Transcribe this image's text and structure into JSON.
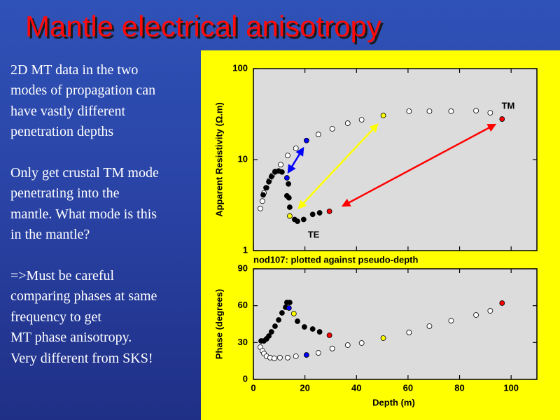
{
  "slide": {
    "title": "Mantle electrical anisotropy",
    "paragraphs": [
      [
        "2D MT data in the two",
        "modes of propagation can",
        "have vastly different",
        "penetration depths"
      ],
      [
        "Only get crustal TM mode",
        "penetrating into the",
        "mantle. What mode is this",
        "in the mantle?"
      ],
      [
        "=>Must be careful",
        "comparing phases at same",
        "frequency to get",
        "MT phase anisotropy.",
        "Very different from SKS!"
      ]
    ]
  },
  "chart_data": [
    {
      "type": "scatter",
      "ylabel": "Apparent Resistivity (Ω.m)",
      "log_y": true,
      "xlim": [
        0,
        110
      ],
      "ylim": [
        1,
        100
      ],
      "yticks": [
        1,
        10,
        100
      ],
      "series": [
        {
          "name": "TM",
          "marker": "open",
          "x": [
            2.7,
            3.5,
            4.1,
            5.1,
            6.2,
            7.3,
            8.4,
            10.6,
            13.3,
            16.5,
            20.6,
            25.2,
            30.6,
            36.6,
            42.0,
            50.4,
            60.4,
            68.3,
            76.7,
            86.4,
            91.9,
            96.5
          ],
          "values": [
            2.9,
            3.5,
            4.3,
            4.9,
            5.9,
            6.7,
            7.4,
            8.8,
            11.1,
            13.3,
            16.2,
            18.9,
            21.8,
            25.1,
            27.4,
            30.5,
            34,
            34,
            34,
            34.5,
            32.7,
            27.9
          ],
          "colors": [
            "#ffffff",
            "#ffffff",
            "#ffffff",
            "#ffffff",
            "#ffffff",
            "#ffffff",
            "#ffffff",
            "#ffffff",
            "#ffffff",
            "#ffffff",
            "#0000ff",
            "#ffffff",
            "#ffffff",
            "#ffffff",
            "#ffffff",
            "#ffff00",
            "#ffffff",
            "#ffffff",
            "#ffffff",
            "#ffffff",
            "#ffffff",
            "#ff0000"
          ]
        },
        {
          "name": "TE",
          "marker": "filled",
          "x": [
            3.8,
            4.9,
            6.0,
            7.0,
            8.4,
            9.8,
            11.1,
            13.0,
            13.6,
            13.0,
            13.8,
            14.1,
            14.1,
            16.0,
            17.1,
            19.5,
            23.0,
            25.7,
            29.5
          ],
          "values": [
            4.1,
            4.9,
            5.7,
            6.5,
            7.3,
            7.5,
            7.3,
            6.3,
            5.4,
            4.0,
            3.8,
            3.0,
            2.4,
            2.2,
            2.1,
            2.2,
            2.5,
            2.6,
            2.7
          ],
          "colors": [
            "#000000",
            "#000000",
            "#000000",
            "#000000",
            "#000000",
            "#000000",
            "#000000",
            "#0000ff",
            "#000000",
            "#000000",
            "#000000",
            "#000000",
            "#ffff00",
            "#000000",
            "#000000",
            "#000000",
            "#000000",
            "#000000",
            "#ff0000"
          ]
        }
      ]
    },
    {
      "type": "scatter",
      "title": "nod107: plotted against pseudo-depth",
      "xlabel": "Depth (m)",
      "ylabel": "Phase (degrees)",
      "xlim": [
        0,
        110
      ],
      "ylim": [
        0,
        90
      ],
      "xticks": [
        0,
        20,
        40,
        60,
        80,
        100
      ],
      "yticks": [
        0,
        30,
        60,
        90
      ],
      "series": [
        {
          "marker": "open",
          "x": [
            2.7,
            3.5,
            4.1,
            5.1,
            6.5,
            8.1,
            10.3,
            13.3,
            16.5,
            20.6,
            25.2,
            30.6,
            36.6,
            42.0,
            50.4,
            60.4,
            68.3,
            76.7,
            86.4,
            91.9,
            96.5
          ],
          "values": [
            26.2,
            23.3,
            21.1,
            18.8,
            17.7,
            17.1,
            17.7,
            17.7,
            18.8,
            19.9,
            21.6,
            25.1,
            27.9,
            29.6,
            33.6,
            38.2,
            43.3,
            47.8,
            52.4,
            55.8,
            62.1
          ],
          "colors": [
            "#ffffff",
            "#ffffff",
            "#ffffff",
            "#ffffff",
            "#ffffff",
            "#ffffff",
            "#ffffff",
            "#ffffff",
            "#ffffff",
            "#0000ff",
            "#ffffff",
            "#ffffff",
            "#ffffff",
            "#ffffff",
            "#ffff00",
            "#ffffff",
            "#ffffff",
            "#ffffff",
            "#ffffff",
            "#ffffff",
            "#ff0000"
          ]
        },
        {
          "marker": "filled",
          "x": [
            3.0,
            4.1,
            5.1,
            6.0,
            7.0,
            8.4,
            9.8,
            11.1,
            12.5,
            13.0,
            14.1,
            13.8,
            15.7,
            17.1,
            19.8,
            23.0,
            25.7,
            29.5
          ],
          "values": [
            31.3,
            31.3,
            33.0,
            35.3,
            38.7,
            43.3,
            48.4,
            54.1,
            58.7,
            62.6,
            62.6,
            58.1,
            53.5,
            47.3,
            42.7,
            41.0,
            38.7,
            35.9
          ],
          "colors": [
            "#000000",
            "#000000",
            "#000000",
            "#000000",
            "#000000",
            "#000000",
            "#000000",
            "#000000",
            "#000000",
            "#000000",
            "#000000",
            "#0000ff",
            "#ffff00",
            "#000000",
            "#000000",
            "#000000",
            "#000000",
            "#ff0000"
          ]
        }
      ]
    }
  ]
}
